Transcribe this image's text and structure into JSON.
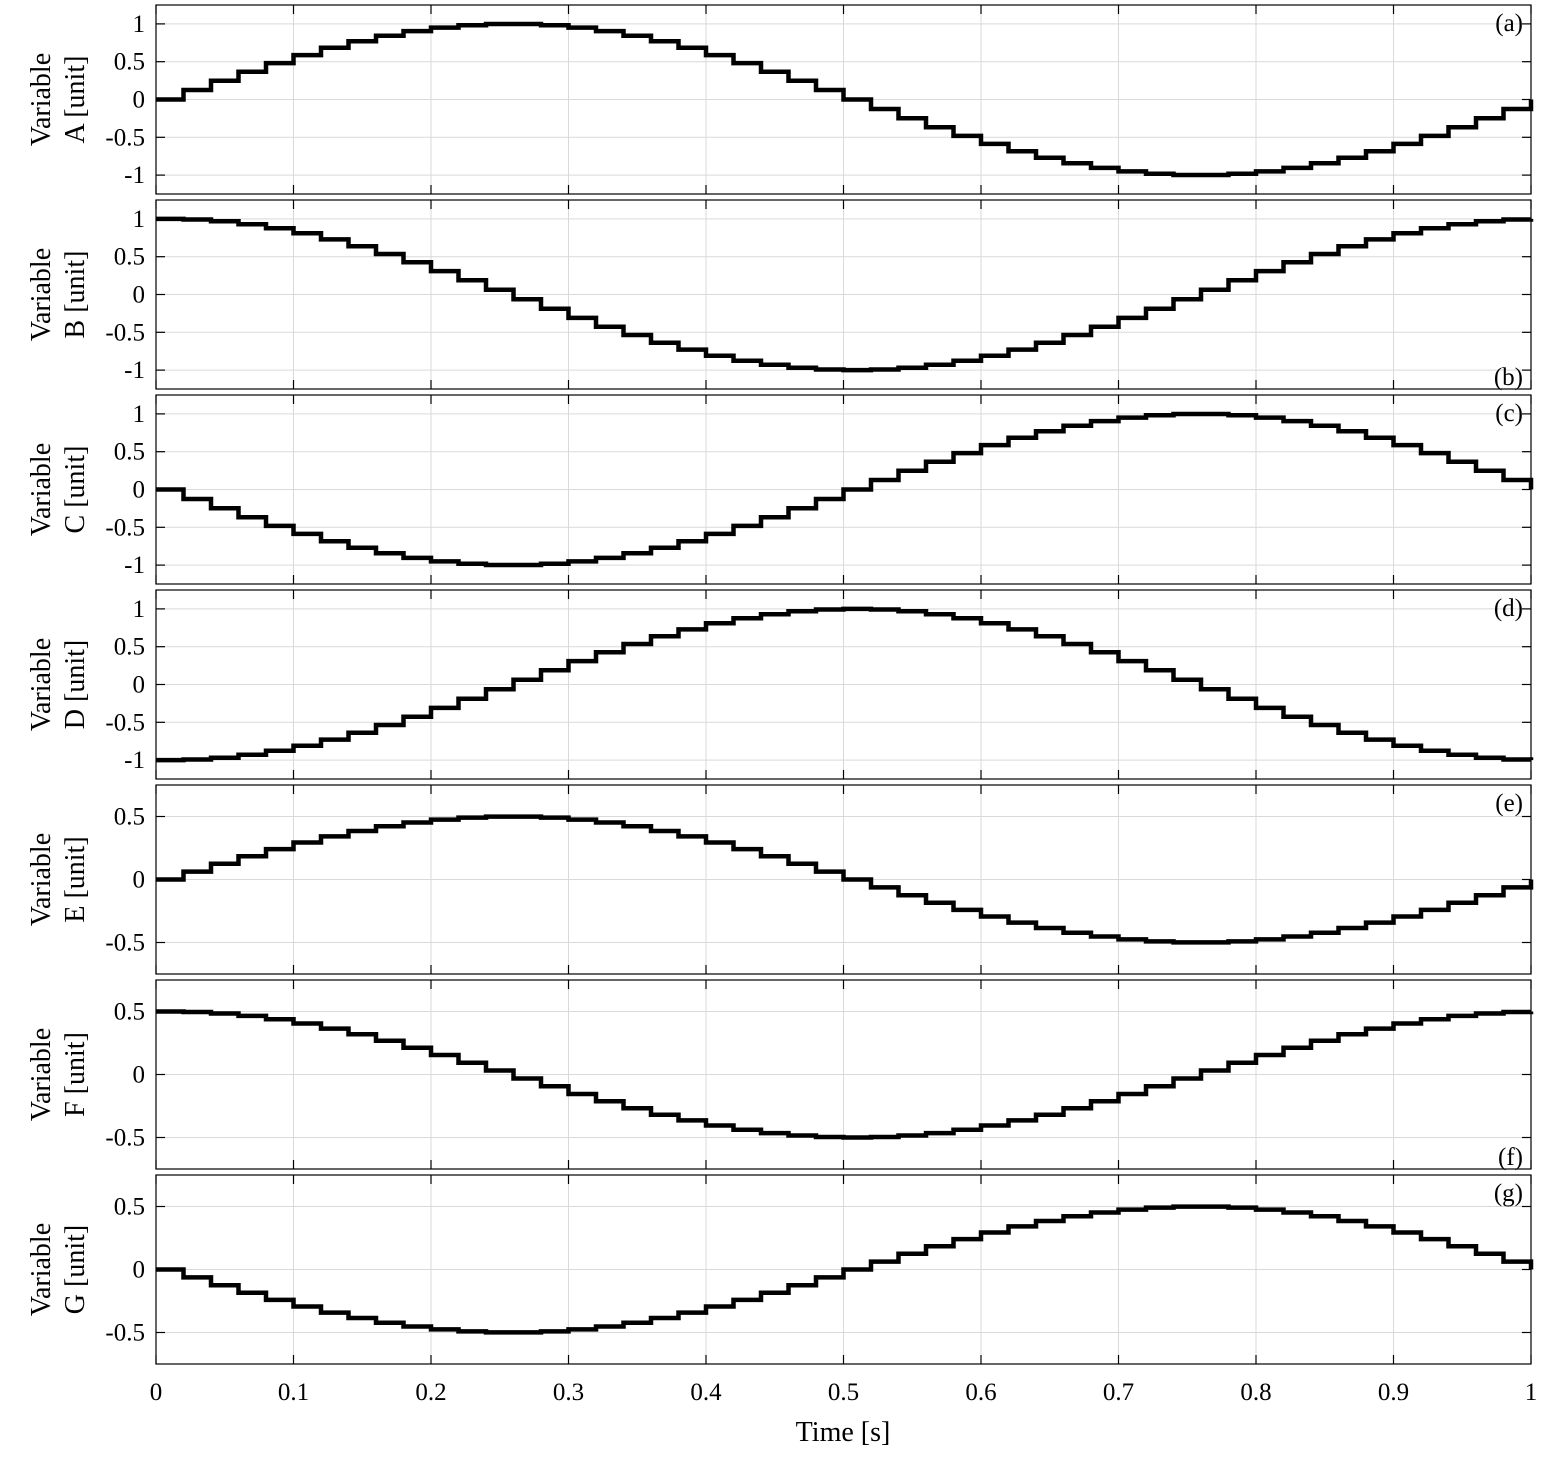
{
  "chart_data": {
    "type": "line",
    "style": "step",
    "shared_x": {
      "label": "Time [s]",
      "lim": [
        0,
        1
      ],
      "ticks": [
        0,
        0.1,
        0.2,
        0.3,
        0.4,
        0.5,
        0.6,
        0.7,
        0.8,
        0.9,
        1
      ],
      "tick_labels": [
        "0",
        "0.1",
        "0.2",
        "0.3",
        "0.4",
        "0.5",
        "0.6",
        "0.7",
        "0.8",
        "0.9",
        "1"
      ]
    },
    "sample_period": 0.02,
    "grid": true,
    "colors": {
      "line": "#000000",
      "grid": "#d9d9d9",
      "frame": "#000000"
    },
    "panels": [
      {
        "tag": "(a)",
        "tag_position": "top-right",
        "ylabel": [
          "Variable",
          "A [unit]"
        ],
        "ylim": [
          -1.25,
          1.25
        ],
        "yticks": [
          1,
          0.5,
          0,
          -0.5,
          -1
        ],
        "ytick_labels": [
          "1",
          "0.5",
          "0",
          "-0.5",
          "-1"
        ],
        "signal": {
          "amplitude": 1,
          "phase_deg": 0,
          "frequency_hz": 1
        }
      },
      {
        "tag": "(b)",
        "tag_position": "bottom-right",
        "ylabel": [
          "Variable",
          "B [unit]"
        ],
        "ylim": [
          -1.25,
          1.25
        ],
        "yticks": [
          1,
          0.5,
          0,
          -0.5,
          -1
        ],
        "ytick_labels": [
          "1",
          "0.5",
          "0",
          "-0.5",
          "-1"
        ],
        "signal": {
          "amplitude": 1,
          "phase_deg": 90,
          "frequency_hz": 1
        }
      },
      {
        "tag": "(c)",
        "tag_position": "top-right",
        "ylabel": [
          "Variable",
          "C [unit]"
        ],
        "ylim": [
          -1.25,
          1.25
        ],
        "yticks": [
          1,
          0.5,
          0,
          -0.5,
          -1
        ],
        "ytick_labels": [
          "1",
          "0.5",
          "0",
          "-0.5",
          "-1"
        ],
        "signal": {
          "amplitude": 1,
          "phase_deg": 180,
          "frequency_hz": 1
        }
      },
      {
        "tag": "(d)",
        "tag_position": "top-right",
        "ylabel": [
          "Variable",
          "D [unit]"
        ],
        "ylim": [
          -1.25,
          1.25
        ],
        "yticks": [
          1,
          0.5,
          0,
          -0.5,
          -1
        ],
        "ytick_labels": [
          "1",
          "0.5",
          "0",
          "-0.5",
          "-1"
        ],
        "signal": {
          "amplitude": 1,
          "phase_deg": 270,
          "frequency_hz": 1
        }
      },
      {
        "tag": "(e)",
        "tag_position": "top-right",
        "ylabel": [
          "Variable",
          "E [unit]"
        ],
        "ylim": [
          -0.75,
          0.75
        ],
        "yticks": [
          0.5,
          0,
          -0.5
        ],
        "ytick_labels": [
          "0.5",
          "0",
          "-0.5"
        ],
        "signal": {
          "amplitude": 0.5,
          "phase_deg": 0,
          "frequency_hz": 1
        }
      },
      {
        "tag": "(f)",
        "tag_position": "bottom-right",
        "ylabel": [
          "Variable",
          "F [unit]"
        ],
        "ylim": [
          -0.75,
          0.75
        ],
        "yticks": [
          0.5,
          0,
          -0.5
        ],
        "ytick_labels": [
          "0.5",
          "0",
          "-0.5"
        ],
        "signal": {
          "amplitude": 0.5,
          "phase_deg": 90,
          "frequency_hz": 1
        }
      },
      {
        "tag": "(g)",
        "tag_position": "top-right",
        "ylabel": [
          "Variable",
          "G [unit]"
        ],
        "ylim": [
          -0.75,
          0.75
        ],
        "yticks": [
          0.5,
          0,
          -0.5
        ],
        "ytick_labels": [
          "0.5",
          "0",
          "-0.5"
        ],
        "signal": {
          "amplitude": 0.5,
          "phase_deg": 180,
          "frequency_hz": 1
        }
      }
    ]
  }
}
